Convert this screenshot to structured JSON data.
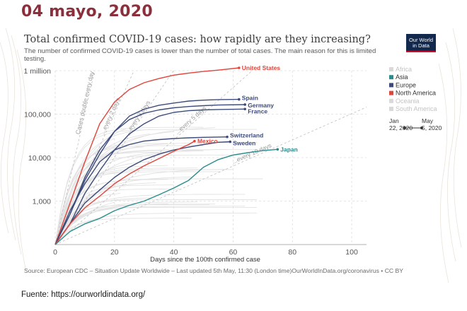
{
  "slide": {
    "title": "04 mayo, 2020",
    "footer": "Fuente: https://ourworldindata.org/"
  },
  "logo": {
    "line1": "Our World",
    "line2": "in Data"
  },
  "chart_data": {
    "type": "line",
    "title": "Total confirmed COVID-19 cases: how rapidly are they increasing?",
    "subtitle": "The number of confirmed COVID-19 cases is lower than the number of total cases. The main reason for this is limited testing.",
    "xlabel": "Days since the 100th confirmed case",
    "ylabel": "",
    "xlim": [
      0,
      105
    ],
    "ylim": [
      100,
      1000000
    ],
    "y_scale": "log",
    "x_ticks": [
      0,
      20,
      40,
      60,
      80,
      100
    ],
    "y_ticks": [
      {
        "value": 1000,
        "label": "1,000"
      },
      {
        "value": 10000,
        "label": "10,000"
      },
      {
        "value": 100000,
        "label": "100,000"
      },
      {
        "value": 1000000,
        "label": "1 million"
      }
    ],
    "grid": true,
    "legend_position": "right",
    "legend": [
      {
        "name": "Africa",
        "color": "#d9d9d9",
        "dim": true
      },
      {
        "name": "Asia",
        "color": "#2a8c8c",
        "dim": false
      },
      {
        "name": "Europe",
        "color": "#3d4b7a",
        "dim": false
      },
      {
        "name": "North America",
        "color": "#e0443a",
        "dim": false
      },
      {
        "name": "Oceania",
        "color": "#d9d9d9",
        "dim": true
      },
      {
        "name": "South America",
        "color": "#d9d9d9",
        "dim": true
      }
    ],
    "timeline": {
      "start": "Jan 22, 2020",
      "end": "May 5, 2020"
    },
    "reference_lines": [
      {
        "label": "Cases double every day",
        "doubling_days": 1
      },
      {
        "label": "...every 2 days",
        "doubling_days": 2
      },
      {
        "label": "...every 3 days",
        "doubling_days": 3
      },
      {
        "label": "...every 5 days",
        "doubling_days": 5
      },
      {
        "label": "...every 10 days",
        "doubling_days": 10
      }
    ],
    "series": [
      {
        "name": "United States",
        "color": "#e0443a",
        "x": [
          0,
          5,
          10,
          15,
          20,
          25,
          30,
          35,
          40,
          45,
          50,
          55,
          62
        ],
        "y": [
          100,
          900,
          8000,
          60000,
          190000,
          370000,
          530000,
          660000,
          790000,
          880000,
          960000,
          1030000,
          1160000
        ]
      },
      {
        "name": "Spain",
        "color": "#3d4b7a",
        "x": [
          0,
          5,
          10,
          15,
          20,
          25,
          30,
          35,
          40,
          45,
          50,
          55,
          62
        ],
        "y": [
          100,
          500,
          3000,
          12000,
          40000,
          90000,
          130000,
          160000,
          180000,
          200000,
          210000,
          216000,
          219000
        ]
      },
      {
        "name": "Germany",
        "color": "#3d4b7a",
        "x": [
          0,
          5,
          10,
          15,
          20,
          25,
          30,
          35,
          40,
          45,
          50,
          55,
          64
        ],
        "y": [
          100,
          500,
          3500,
          15000,
          40000,
          75000,
          105000,
          125000,
          140000,
          150000,
          157000,
          162000,
          166000
        ]
      },
      {
        "name": "France",
        "color": "#3d4b7a",
        "x": [
          0,
          5,
          10,
          15,
          20,
          25,
          30,
          35,
          40,
          45,
          50,
          55,
          64
        ],
        "y": [
          100,
          300,
          1500,
          5000,
          15000,
          35000,
          60000,
          90000,
          110000,
          120000,
          125000,
          128000,
          131000
        ]
      },
      {
        "name": "Switzerland",
        "color": "#3d4b7a",
        "x": [
          0,
          5,
          10,
          15,
          20,
          25,
          30,
          35,
          40,
          45,
          50,
          58
        ],
        "y": [
          100,
          600,
          2500,
          8000,
          15000,
          20000,
          24000,
          26000,
          27500,
          28500,
          29300,
          30000
        ]
      },
      {
        "name": "Sweden",
        "color": "#3d4b7a",
        "x": [
          0,
          5,
          10,
          15,
          20,
          25,
          30,
          35,
          40,
          45,
          50,
          55,
          59
        ],
        "y": [
          100,
          300,
          900,
          1800,
          3500,
          6000,
          9000,
          12000,
          15000,
          17500,
          20000,
          22500,
          23200
        ]
      },
      {
        "name": "Mexico",
        "color": "#e0443a",
        "x": [
          0,
          5,
          10,
          15,
          20,
          25,
          30,
          35,
          40,
          45,
          47
        ],
        "y": [
          100,
          300,
          700,
          1300,
          2500,
          4200,
          6500,
          9500,
          14000,
          20000,
          24000
        ]
      },
      {
        "name": "Japan",
        "color": "#2a8c8c",
        "x": [
          0,
          5,
          10,
          15,
          20,
          25,
          30,
          35,
          40,
          45,
          50,
          55,
          60,
          65,
          70,
          75
        ],
        "y": [
          100,
          200,
          300,
          400,
          600,
          800,
          1000,
          1400,
          2000,
          3000,
          6000,
          9000,
          11500,
          13000,
          14500,
          15500
        ]
      }
    ],
    "source": "Source: European CDC – Situation Update Worldwide – Last updated 5th May, 11:30 (London time)",
    "credit": "OurWorldInData.org/coronavirus • CC BY"
  }
}
